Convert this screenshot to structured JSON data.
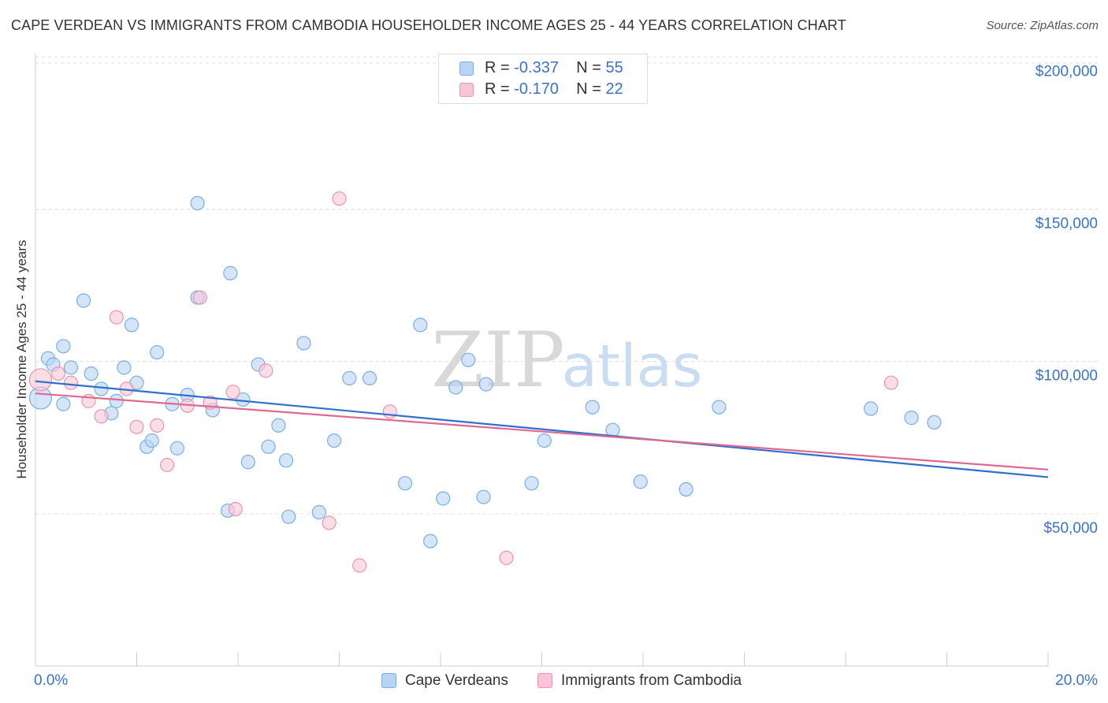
{
  "header": {
    "title": "CAPE VERDEAN VS IMMIGRANTS FROM CAMBODIA HOUSEHOLDER INCOME AGES 25 - 44 YEARS CORRELATION CHART",
    "source": "Source: ZipAtlas.com"
  },
  "watermark": {
    "zip": "ZIP",
    "atlas": "atlas"
  },
  "legend": {
    "rows": [
      {
        "r_label": "R = ",
        "r_value": "-0.337",
        "n_label": "N = ",
        "n_value": "55"
      },
      {
        "r_label": "R = ",
        "r_value": "-0.170",
        "n_label": "N = ",
        "n_value": "22"
      }
    ]
  },
  "colors": {
    "blue_fill": "#b8d4f5",
    "blue_stroke": "#7aaee6",
    "blue_line": "#2f6fd0",
    "pink_fill": "#f8c6d6",
    "pink_stroke": "#ec94b2",
    "pink_line": "#e06890",
    "axis_text": "#3a72c9",
    "grid": "#dddddd"
  },
  "chart_data": {
    "type": "scatter",
    "title": "CAPE VERDEAN VS IMMIGRANTS FROM CAMBODIA HOUSEHOLDER INCOME AGES 25 - 44 YEARS CORRELATION CHART",
    "xlabel": "",
    "ylabel": "Householder Income Ages 25 - 44 years",
    "xlim": [
      0,
      20
    ],
    "ylim": [
      0,
      210000
    ],
    "x_tick_labels": [
      "0.0%",
      "20.0%"
    ],
    "y_ticks": [
      50000,
      100000,
      150000,
      200000
    ],
    "y_tick_labels": [
      "$50,000",
      "$100,000",
      "$150,000",
      "$200,000"
    ],
    "series": [
      {
        "name": "Cape Verdeans",
        "R": -0.337,
        "N": 55,
        "trend": {
          "x": [
            0,
            20
          ],
          "y": [
            93500,
            62000
          ]
        },
        "points": [
          {
            "x": 0.1,
            "y": 88000,
            "large": true
          },
          {
            "x": 0.25,
            "y": 101000
          },
          {
            "x": 0.35,
            "y": 99000
          },
          {
            "x": 0.55,
            "y": 86000
          },
          {
            "x": 0.55,
            "y": 105000
          },
          {
            "x": 0.7,
            "y": 98000
          },
          {
            "x": 0.95,
            "y": 120000
          },
          {
            "x": 1.1,
            "y": 96000
          },
          {
            "x": 1.3,
            "y": 91000
          },
          {
            "x": 1.5,
            "y": 83000
          },
          {
            "x": 1.6,
            "y": 87000
          },
          {
            "x": 1.75,
            "y": 98000
          },
          {
            "x": 1.9,
            "y": 112000
          },
          {
            "x": 2.0,
            "y": 93000
          },
          {
            "x": 2.2,
            "y": 72000
          },
          {
            "x": 2.3,
            "y": 74000
          },
          {
            "x": 2.4,
            "y": 103000
          },
          {
            "x": 2.7,
            "y": 86000
          },
          {
            "x": 2.8,
            "y": 71500
          },
          {
            "x": 3.0,
            "y": 89000
          },
          {
            "x": 3.2,
            "y": 152000
          },
          {
            "x": 3.2,
            "y": 121000
          },
          {
            "x": 3.5,
            "y": 84000
          },
          {
            "x": 3.8,
            "y": 51000
          },
          {
            "x": 3.85,
            "y": 129000
          },
          {
            "x": 4.1,
            "y": 87500
          },
          {
            "x": 4.2,
            "y": 67000
          },
          {
            "x": 4.4,
            "y": 99000
          },
          {
            "x": 4.6,
            "y": 72000
          },
          {
            "x": 4.8,
            "y": 79000
          },
          {
            "x": 4.95,
            "y": 67500
          },
          {
            "x": 5.0,
            "y": 49000
          },
          {
            "x": 5.3,
            "y": 106000
          },
          {
            "x": 5.6,
            "y": 50500
          },
          {
            "x": 5.9,
            "y": 74000
          },
          {
            "x": 6.2,
            "y": 94500
          },
          {
            "x": 6.6,
            "y": 94500
          },
          {
            "x": 7.3,
            "y": 60000
          },
          {
            "x": 7.6,
            "y": 112000
          },
          {
            "x": 7.8,
            "y": 41000
          },
          {
            "x": 8.05,
            "y": 55000
          },
          {
            "x": 8.3,
            "y": 91500
          },
          {
            "x": 8.55,
            "y": 100500
          },
          {
            "x": 8.85,
            "y": 55500
          },
          {
            "x": 8.9,
            "y": 92500
          },
          {
            "x": 9.8,
            "y": 60000
          },
          {
            "x": 10.05,
            "y": 74000
          },
          {
            "x": 11.0,
            "y": 85000
          },
          {
            "x": 11.4,
            "y": 77500
          },
          {
            "x": 11.95,
            "y": 60500
          },
          {
            "x": 12.85,
            "y": 58000
          },
          {
            "x": 13.5,
            "y": 85000
          },
          {
            "x": 16.5,
            "y": 84500
          },
          {
            "x": 17.3,
            "y": 81500
          },
          {
            "x": 17.75,
            "y": 80000
          }
        ]
      },
      {
        "name": "Immigrants from Cambodia",
        "R": -0.17,
        "N": 22,
        "trend": {
          "x": [
            0,
            20
          ],
          "y": [
            89500,
            64500
          ]
        },
        "points": [
          {
            "x": 0.1,
            "y": 94000,
            "large": true
          },
          {
            "x": 0.45,
            "y": 96000
          },
          {
            "x": 0.7,
            "y": 93000
          },
          {
            "x": 1.05,
            "y": 87000
          },
          {
            "x": 1.3,
            "y": 82000
          },
          {
            "x": 1.6,
            "y": 114500
          },
          {
            "x": 1.8,
            "y": 91000
          },
          {
            "x": 2.0,
            "y": 78500
          },
          {
            "x": 2.4,
            "y": 79000
          },
          {
            "x": 2.6,
            "y": 66000
          },
          {
            "x": 3.0,
            "y": 85500
          },
          {
            "x": 3.25,
            "y": 121000
          },
          {
            "x": 3.45,
            "y": 86500
          },
          {
            "x": 3.9,
            "y": 90000
          },
          {
            "x": 3.95,
            "y": 51500
          },
          {
            "x": 4.55,
            "y": 97000
          },
          {
            "x": 5.8,
            "y": 47000
          },
          {
            "x": 6.0,
            "y": 153500
          },
          {
            "x": 6.4,
            "y": 33000
          },
          {
            "x": 7.0,
            "y": 83500
          },
          {
            "x": 9.3,
            "y": 35500
          },
          {
            "x": 16.9,
            "y": 93000
          }
        ]
      }
    ]
  },
  "bottom_legend": {
    "items": [
      "Cape Verdeans",
      "Immigrants from Cambodia"
    ]
  }
}
